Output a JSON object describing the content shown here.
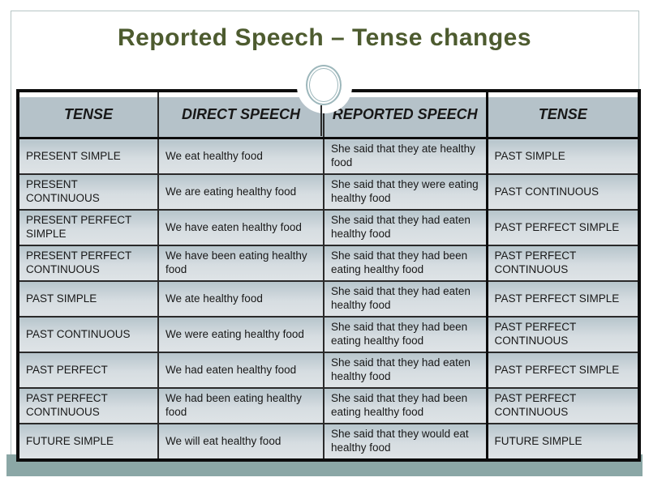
{
  "slide": {
    "title": "Reported Speech – Tense changes",
    "ornament": "double-ring-circle",
    "colors": {
      "title_text": "#4d5b2f",
      "accent_bar": "#8ba7a6",
      "frame_line": "#b7c6c6",
      "ring": "#9db7bb",
      "header_fill": "#b5c2c9",
      "row_fill_top": "#b7c5cc",
      "row_fill_bottom": "#dee3e6",
      "table_border": "#0c0c0c"
    }
  },
  "table": {
    "headers": [
      "TENSE",
      "DIRECT SPEECH",
      "REPORTED SPEECH",
      "TENSE"
    ],
    "rows": [
      [
        "PRESENT SIMPLE",
        "We eat healthy food",
        "She said that they ate healthy food",
        "PAST SIMPLE"
      ],
      [
        "PRESENT CONTINUOUS",
        "We are eating healthy food",
        "She said that they were eating healthy food",
        "PAST CONTINUOUS"
      ],
      [
        "PRESENT PERFECT SIMPLE",
        "We have eaten healthy food",
        "She said that they had eaten healthy food",
        "PAST PERFECT SIMPLE"
      ],
      [
        "PRESENT PERFECT CONTINUOUS",
        "We have been eating healthy food",
        "She said that they had been eating  healthy food",
        "PAST PERFECT CONTINUOUS"
      ],
      [
        "PAST SIMPLE",
        "We ate healthy food",
        "She said that they had eaten healthy food",
        "PAST PERFECT SIMPLE"
      ],
      [
        "PAST CONTINUOUS",
        "We were eating healthy food",
        "She said that they had been eating healthy food",
        "PAST PERFECT CONTINUOUS"
      ],
      [
        "PAST PERFECT",
        "We had eaten healthy food",
        "She said that they had eaten healthy food",
        "PAST PERFECT SIMPLE"
      ],
      [
        "PAST PERFECT CONTINUOUS",
        "We had been eating healthy food",
        "She said that they had been eating  healthy food",
        "PAST PERFECT CONTINUOUS"
      ],
      [
        "FUTURE SIMPLE",
        "We will eat healthy food",
        "She said that they would eat healthy food",
        "FUTURE SIMPLE"
      ]
    ]
  }
}
